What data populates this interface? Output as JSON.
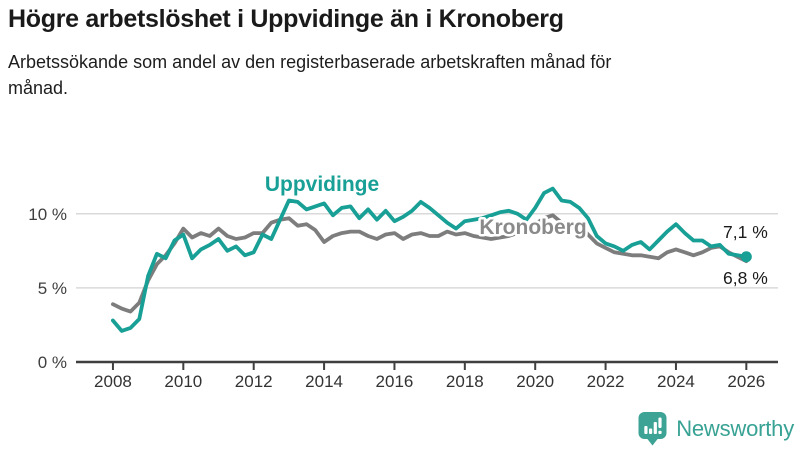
{
  "page": {
    "title": "Högre arbetslöshet i Uppvidinge än i Kronoberg",
    "subtitle": "Arbetssökande som andel av den registerbaserade arbetskraften månad för månad."
  },
  "footer": {
    "brand": "Newsworthy",
    "logo_icon": "newsworthy-badge-icon",
    "brand_color": "#3da495"
  },
  "chart_data": {
    "type": "line",
    "title": "Högre arbetslöshet i Uppvidinge än i Kronoberg",
    "xlabel": "",
    "ylabel": "",
    "y_unit": "%",
    "grid": true,
    "legend_position": "inline-labels",
    "xlim": [
      2006.95,
      2026.9
    ],
    "ylim": [
      0,
      13.9
    ],
    "x_ticks": [
      {
        "value": 2008,
        "label": "2008"
      },
      {
        "value": 2010,
        "label": "2010"
      },
      {
        "value": 2012,
        "label": "2012"
      },
      {
        "value": 2014,
        "label": "2014"
      },
      {
        "value": 2016,
        "label": "2016"
      },
      {
        "value": 2018,
        "label": "2018"
      },
      {
        "value": 2020,
        "label": "2020"
      },
      {
        "value": 2022,
        "label": "2022"
      },
      {
        "value": 2024,
        "label": "2024"
      },
      {
        "value": 2026,
        "label": "2026"
      }
    ],
    "y_ticks": [
      {
        "value": 0,
        "label": "0 %"
      },
      {
        "value": 5,
        "label": "5 %"
      },
      {
        "value": 10,
        "label": "10 %"
      }
    ],
    "x": [
      2008,
      2008.25,
      2008.5,
      2008.75,
      2009,
      2009.25,
      2009.5,
      2009.75,
      2010,
      2010.25,
      2010.5,
      2010.75,
      2011,
      2011.25,
      2011.5,
      2011.75,
      2012,
      2012.25,
      2012.5,
      2012.75,
      2013,
      2013.25,
      2013.5,
      2013.75,
      2014,
      2014.25,
      2014.5,
      2014.75,
      2015,
      2015.25,
      2015.5,
      2015.75,
      2016,
      2016.25,
      2016.5,
      2016.75,
      2017,
      2017.25,
      2017.5,
      2017.75,
      2018,
      2018.25,
      2018.5,
      2018.75,
      2019,
      2019.25,
      2019.5,
      2019.75,
      2020,
      2020.25,
      2020.5,
      2020.75,
      2021,
      2021.25,
      2021.5,
      2021.75,
      2022,
      2022.25,
      2022.5,
      2022.75,
      2023,
      2023.25,
      2023.5,
      2023.75,
      2024,
      2024.25,
      2024.5,
      2024.75,
      2025,
      2025.25,
      2025.5,
      2025.75,
      2026
    ],
    "series": [
      {
        "name": "Kronoberg",
        "color": "#7d7d7d",
        "label_color": "#8a8a8a",
        "end_label": "6,8 %",
        "end_value": 6.8,
        "end_dot": false,
        "values": [
          3.9,
          3.6,
          3.4,
          4.0,
          5.5,
          6.6,
          7.2,
          8.0,
          9.0,
          8.4,
          8.7,
          8.5,
          9.0,
          8.5,
          8.3,
          8.4,
          8.7,
          8.7,
          9.4,
          9.6,
          9.7,
          9.2,
          9.3,
          8.9,
          8.1,
          8.5,
          8.7,
          8.8,
          8.8,
          8.5,
          8.3,
          8.6,
          8.7,
          8.3,
          8.6,
          8.7,
          8.5,
          8.5,
          8.8,
          8.6,
          8.7,
          8.5,
          8.4,
          8.3,
          8.4,
          8.5,
          8.7,
          9.0,
          9.3,
          9.7,
          9.9,
          9.4,
          9.3,
          9.2,
          8.6,
          8.0,
          7.7,
          7.4,
          7.3,
          7.2,
          7.2,
          7.1,
          7.0,
          7.4,
          7.6,
          7.4,
          7.2,
          7.4,
          7.7,
          7.8,
          7.4,
          7.1,
          6.8
        ]
      },
      {
        "name": "Uppvidinge",
        "color": "#18a096",
        "label_color": "#18a096",
        "end_label": "7,1 %",
        "end_value": 7.1,
        "end_dot": true,
        "values": [
          2.8,
          2.1,
          2.3,
          2.9,
          5.8,
          7.3,
          7.0,
          8.2,
          8.6,
          7.0,
          7.6,
          7.9,
          8.3,
          7.5,
          7.8,
          7.2,
          7.4,
          8.6,
          8.3,
          9.6,
          10.9,
          10.8,
          10.3,
          10.5,
          10.7,
          9.9,
          10.4,
          10.5,
          9.7,
          10.3,
          9.6,
          10.2,
          9.5,
          9.8,
          10.2,
          10.8,
          10.4,
          9.9,
          9.4,
          9.0,
          9.5,
          9.6,
          9.7,
          9.9,
          10.1,
          10.2,
          10.0,
          9.6,
          10.4,
          11.4,
          11.7,
          10.9,
          10.8,
          10.4,
          9.7,
          8.5,
          8.0,
          7.8,
          7.5,
          7.9,
          8.1,
          7.6,
          8.2,
          8.8,
          9.3,
          8.7,
          8.2,
          8.2,
          7.8,
          7.9,
          7.3,
          7.2,
          7.1
        ]
      }
    ]
  }
}
